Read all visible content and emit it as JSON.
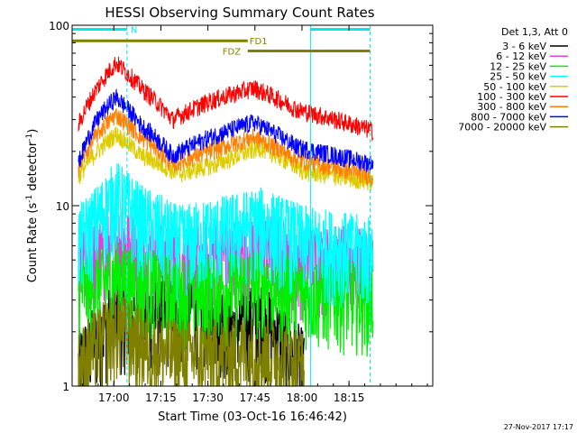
{
  "chart_data": {
    "type": "line",
    "title": "HESSI Observing Summary Count Rates",
    "xlabel": "Start Time (03-Oct-16 16:46:42)",
    "ylabel_main": "Count Rate (s",
    "ylabel_sup": "-1",
    "ylabel_tail": " detector",
    "ylabel_end": ")",
    "yscale": "log",
    "ylim": [
      1,
      100
    ],
    "xlim_minutes": [
      0,
      115
    ],
    "x_ticks": [
      {
        "label": "17:00",
        "min": 13.3
      },
      {
        "label": "17:15",
        "min": 28.3
      },
      {
        "label": "17:30",
        "min": 43.3
      },
      {
        "label": "17:45",
        "min": 58.3
      },
      {
        "label": "18:00",
        "min": 73.3
      },
      {
        "label": "18:15",
        "min": 88.3
      }
    ],
    "y_ticks": [
      {
        "label": "1",
        "value": 1
      },
      {
        "label": "10",
        "value": 10
      },
      {
        "label": "100",
        "value": 100
      }
    ],
    "legend_title": "Det 1,3, Att 0",
    "legend_placement": "right",
    "series": [
      {
        "name": "3 - 6 keV",
        "color": "#000000",
        "points": [
          [
            2,
            1.3
          ],
          [
            14,
            2.5
          ],
          [
            26,
            2.6
          ],
          [
            38,
            2.8
          ],
          [
            52,
            2.2
          ],
          [
            60,
            2.4
          ],
          [
            74,
            1.3
          ]
        ]
      },
      {
        "name": "6 - 12 keV",
        "color": "#e040e0",
        "points": [
          [
            2,
            4.8
          ],
          [
            10,
            5.5
          ],
          [
            14,
            6.5
          ],
          [
            22,
            5.8
          ],
          [
            34,
            5.2
          ],
          [
            50,
            5.5
          ],
          [
            60,
            6.0
          ],
          [
            74,
            5.0
          ],
          [
            96,
            5.0
          ]
        ]
      },
      {
        "name": "12 - 25 keV",
        "color": "#00ee00",
        "points": [
          [
            2,
            3.4
          ],
          [
            10,
            3.8
          ],
          [
            14,
            4.2
          ],
          [
            22,
            3.8
          ],
          [
            34,
            3.4
          ],
          [
            50,
            3.6
          ],
          [
            60,
            3.9
          ],
          [
            74,
            3.4
          ],
          [
            96,
            3.2
          ]
        ]
      },
      {
        "name": "25 - 50 keV",
        "color": "#00ffff",
        "points": [
          [
            2,
            6.5
          ],
          [
            8,
            8.5
          ],
          [
            14,
            11.5
          ],
          [
            22,
            8.5
          ],
          [
            34,
            6.5
          ],
          [
            50,
            7.5
          ],
          [
            60,
            8.2
          ],
          [
            74,
            6.5
          ],
          [
            96,
            5.6
          ]
        ]
      },
      {
        "name": "50 - 100 keV",
        "color": "#ddcc00",
        "points": [
          [
            2,
            14.5
          ],
          [
            8,
            20
          ],
          [
            14,
            25
          ],
          [
            22,
            19
          ],
          [
            34,
            15
          ],
          [
            46,
            17
          ],
          [
            60,
            21
          ],
          [
            74,
            15.5
          ],
          [
            96,
            13.5
          ]
        ]
      },
      {
        "name": "100 - 300 keV",
        "color": "#ff0000",
        "points": [
          [
            2,
            28
          ],
          [
            8,
            45
          ],
          [
            14,
            62
          ],
          [
            22,
            45
          ],
          [
            32,
            30
          ],
          [
            44,
            38
          ],
          [
            58,
            45
          ],
          [
            72,
            34
          ],
          [
            96,
            26
          ]
        ]
      },
      {
        "name": "300 - 800 keV",
        "color": "#ff7f00",
        "points": [
          [
            2,
            16
          ],
          [
            8,
            25
          ],
          [
            14,
            32
          ],
          [
            22,
            24
          ],
          [
            32,
            17
          ],
          [
            44,
            20
          ],
          [
            58,
            24
          ],
          [
            72,
            18
          ],
          [
            96,
            14.5
          ]
        ]
      },
      {
        "name": "800 - 7000 keV",
        "color": "#0000ff",
        "points": [
          [
            2,
            17
          ],
          [
            8,
            30
          ],
          [
            14,
            40
          ],
          [
            22,
            28
          ],
          [
            32,
            19
          ],
          [
            44,
            24
          ],
          [
            58,
            29
          ],
          [
            72,
            21
          ],
          [
            96,
            17
          ]
        ]
      },
      {
        "name": "7000 - 20000 keV",
        "color": "#808000",
        "points": [
          [
            2,
            1.3
          ],
          [
            14,
            2.2
          ],
          [
            26,
            1.6
          ],
          [
            40,
            1.5
          ],
          [
            56,
            1.6
          ],
          [
            66,
            1.5
          ],
          [
            74,
            1.3
          ]
        ]
      }
    ],
    "flag_bars": [
      {
        "label": "N",
        "color": "#00e8e8",
        "segments": [
          [
            0,
            17.5
          ],
          [
            76,
            95
          ]
        ],
        "level": 95
      },
      {
        "label": "FD1",
        "color": "#808000",
        "segments": [
          [
            0,
            56
          ]
        ],
        "level": 82
      },
      {
        "label": "FDZ",
        "color": "#808000",
        "segments": [
          [
            56,
            95
          ]
        ],
        "level": 72
      }
    ],
    "vertical_lines": [
      {
        "min": 17.5,
        "color": "#00e8e8",
        "style": "dashed"
      },
      {
        "min": 76,
        "color": "#00e8e8",
        "style": "solid"
      },
      {
        "min": 95,
        "color": "#00e8e8",
        "style": "dashed"
      }
    ]
  },
  "footer_timestamp": "27-Nov-2017 17:17"
}
